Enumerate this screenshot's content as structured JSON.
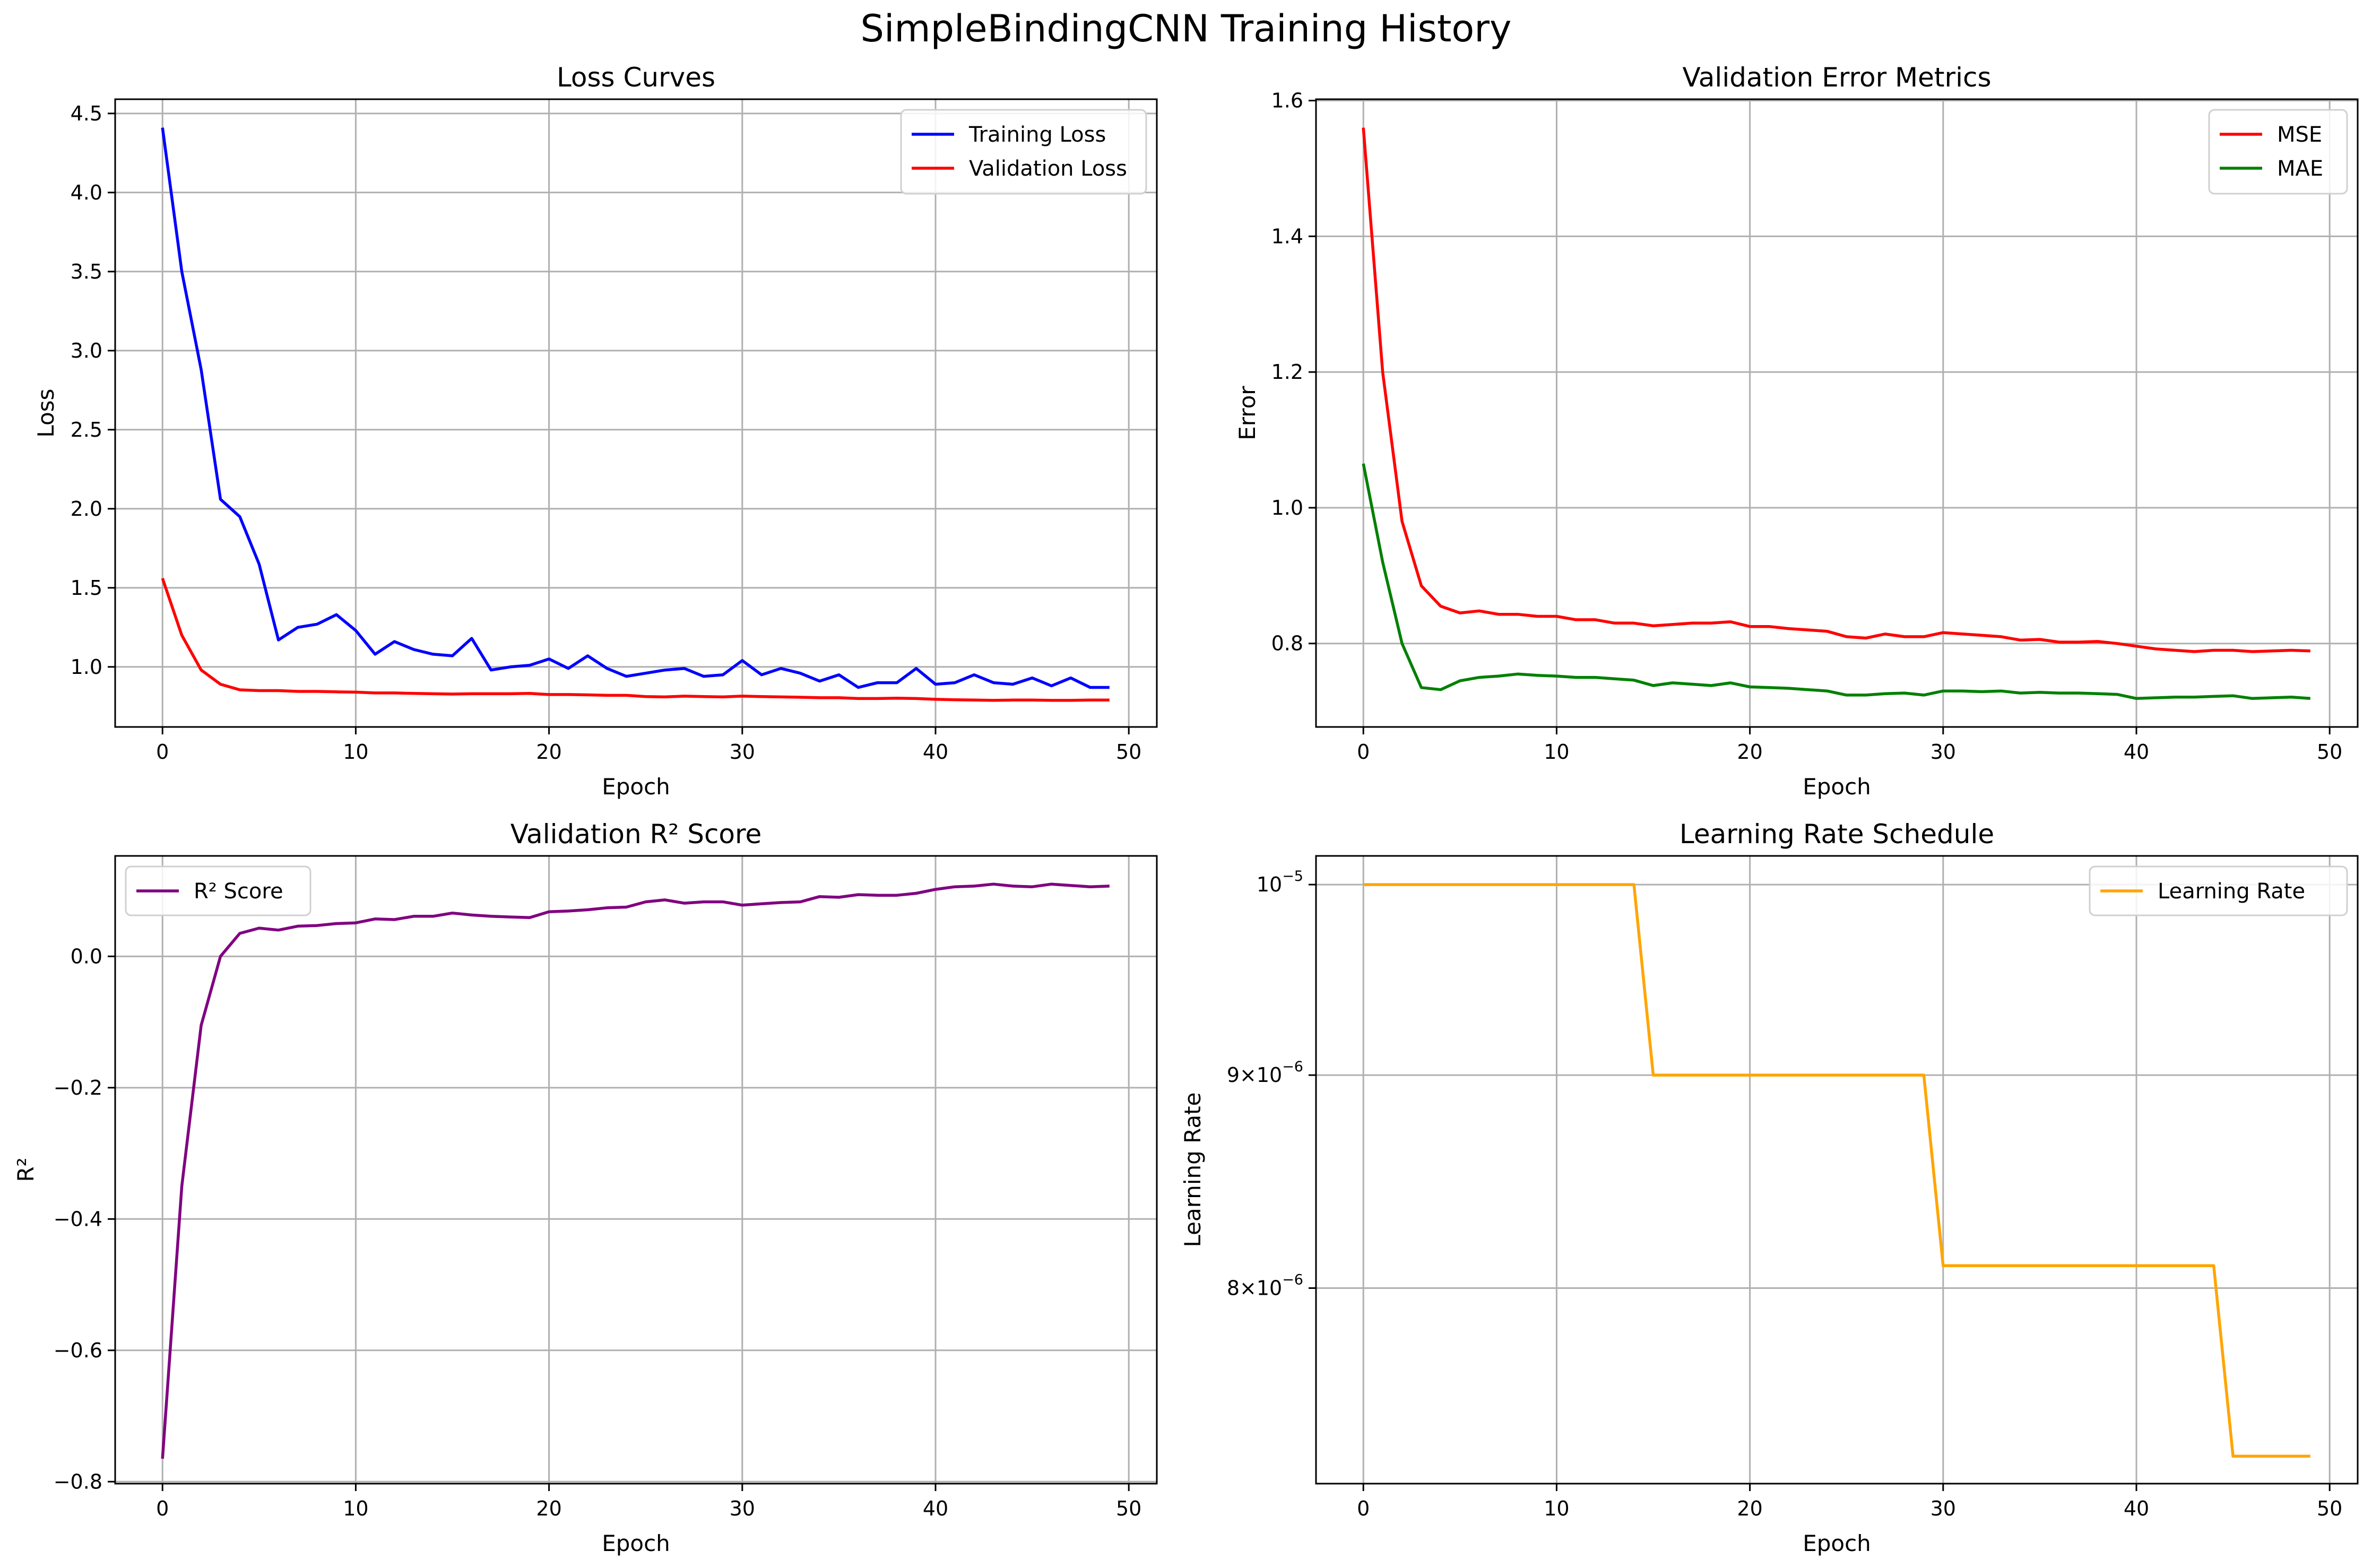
{
  "figure_title": "SimpleBindingCNN Training History",
  "colors": {
    "training_loss": "#0000ff",
    "validation_loss": "#ff0000",
    "mse": "#ff0000",
    "mae": "#008000",
    "r2": "#800080",
    "learning_rate": "#ffa500"
  },
  "chart_data": [
    {
      "type": "line",
      "title": "Loss Curves",
      "xlabel": "Epoch",
      "ylabel": "Loss",
      "xlim": [
        -2.45,
        51.45
      ],
      "ylim": [
        0.62,
        4.59
      ],
      "x_ticks": [
        0,
        10,
        20,
        30,
        40,
        50
      ],
      "y_ticks": [
        1.0,
        1.5,
        2.0,
        2.5,
        3.0,
        3.5,
        4.0,
        4.5
      ],
      "y_tick_labels": [
        "1.0",
        "1.5",
        "2.0",
        "2.5",
        "3.0",
        "3.5",
        "4.0",
        "4.5"
      ],
      "grid": true,
      "legend": "top-right",
      "x": [
        0,
        1,
        2,
        3,
        4,
        5,
        6,
        7,
        8,
        9,
        10,
        11,
        12,
        13,
        14,
        15,
        16,
        17,
        18,
        19,
        20,
        21,
        22,
        23,
        24,
        25,
        26,
        27,
        28,
        29,
        30,
        31,
        32,
        33,
        34,
        35,
        36,
        37,
        38,
        39,
        40,
        41,
        42,
        43,
        44,
        45,
        46,
        47,
        48,
        49
      ],
      "series": [
        {
          "name": "Training Loss",
          "color_key": "training_loss",
          "values": [
            4.41,
            3.5,
            2.88,
            2.06,
            1.95,
            1.65,
            1.17,
            1.25,
            1.27,
            1.33,
            1.23,
            1.08,
            1.16,
            1.11,
            1.08,
            1.07,
            1.18,
            0.98,
            1.0,
            1.01,
            1.05,
            0.99,
            1.07,
            0.99,
            0.94,
            0.96,
            0.98,
            0.99,
            0.94,
            0.95,
            1.04,
            0.95,
            0.99,
            0.96,
            0.91,
            0.95,
            0.87,
            0.9,
            0.9,
            0.99,
            0.89,
            0.9,
            0.95,
            0.9,
            0.89,
            0.93,
            0.88,
            0.93,
            0.87,
            0.87
          ]
        },
        {
          "name": "Validation Loss",
          "color_key": "validation_loss",
          "values": [
            1.56,
            1.2,
            0.98,
            0.89,
            0.855,
            0.85,
            0.85,
            0.845,
            0.845,
            0.842,
            0.84,
            0.835,
            0.835,
            0.832,
            0.83,
            0.828,
            0.83,
            0.83,
            0.83,
            0.832,
            0.825,
            0.825,
            0.823,
            0.82,
            0.82,
            0.812,
            0.81,
            0.815,
            0.812,
            0.81,
            0.815,
            0.812,
            0.81,
            0.808,
            0.805,
            0.805,
            0.8,
            0.8,
            0.802,
            0.8,
            0.795,
            0.792,
            0.79,
            0.788,
            0.79,
            0.79,
            0.788,
            0.788,
            0.79,
            0.79
          ]
        }
      ]
    },
    {
      "type": "line",
      "title": "Validation Error Metrics",
      "xlabel": "Epoch",
      "ylabel": "Error",
      "xlim": [
        -2.45,
        51.45
      ],
      "ylim": [
        0.677,
        1.602
      ],
      "x_ticks": [
        0,
        10,
        20,
        30,
        40,
        50
      ],
      "y_ticks": [
        0.8,
        1.0,
        1.2,
        1.4,
        1.6
      ],
      "y_tick_labels": [
        "0.8",
        "1.0",
        "1.2",
        "1.4",
        "1.6"
      ],
      "grid": true,
      "legend": "top-right",
      "x": [
        0,
        1,
        2,
        3,
        4,
        5,
        6,
        7,
        8,
        9,
        10,
        11,
        12,
        13,
        14,
        15,
        16,
        17,
        18,
        19,
        20,
        21,
        22,
        23,
        24,
        25,
        26,
        27,
        28,
        29,
        30,
        31,
        32,
        33,
        34,
        35,
        36,
        37,
        38,
        39,
        40,
        41,
        42,
        43,
        44,
        45,
        46,
        47,
        48,
        49
      ],
      "series": [
        {
          "name": "MSE",
          "color_key": "mse",
          "values": [
            1.56,
            1.2,
            0.98,
            0.885,
            0.855,
            0.845,
            0.848,
            0.843,
            0.843,
            0.84,
            0.84,
            0.835,
            0.835,
            0.83,
            0.83,
            0.826,
            0.828,
            0.83,
            0.83,
            0.832,
            0.825,
            0.825,
            0.822,
            0.82,
            0.818,
            0.81,
            0.808,
            0.814,
            0.81,
            0.81,
            0.816,
            0.814,
            0.812,
            0.81,
            0.805,
            0.806,
            0.802,
            0.802,
            0.803,
            0.8,
            0.796,
            0.792,
            0.79,
            0.788,
            0.79,
            0.79,
            0.788,
            0.789,
            0.79,
            0.789
          ]
        },
        {
          "name": "MAE",
          "color_key": "mae",
          "values": [
            1.065,
            0.92,
            0.8,
            0.735,
            0.732,
            0.745,
            0.75,
            0.752,
            0.755,
            0.753,
            0.752,
            0.75,
            0.75,
            0.748,
            0.746,
            0.738,
            0.742,
            0.74,
            0.738,
            0.742,
            0.736,
            0.735,
            0.734,
            0.732,
            0.73,
            0.724,
            0.724,
            0.726,
            0.727,
            0.724,
            0.73,
            0.73,
            0.729,
            0.73,
            0.727,
            0.728,
            0.727,
            0.727,
            0.726,
            0.725,
            0.719,
            0.72,
            0.721,
            0.721,
            0.722,
            0.723,
            0.719,
            0.72,
            0.721,
            0.719
          ]
        }
      ]
    },
    {
      "type": "line",
      "title": "Validation R² Score",
      "xlabel": "Epoch",
      "ylabel": "R²",
      "xlim": [
        -2.45,
        51.45
      ],
      "ylim": [
        -0.803,
        0.153
      ],
      "x_ticks": [
        0,
        10,
        20,
        30,
        40,
        50
      ],
      "y_ticks": [
        -0.8,
        -0.6,
        -0.4,
        -0.2,
        0.0
      ],
      "y_tick_labels": [
        "−0.8",
        "−0.6",
        "−0.4",
        "−0.2",
        "0.0"
      ],
      "grid": true,
      "legend": "top-left",
      "x": [
        0,
        1,
        2,
        3,
        4,
        5,
        6,
        7,
        8,
        9,
        10,
        11,
        12,
        13,
        14,
        15,
        16,
        17,
        18,
        19,
        20,
        21,
        22,
        23,
        24,
        25,
        26,
        27,
        28,
        29,
        30,
        31,
        32,
        33,
        34,
        35,
        36,
        37,
        38,
        39,
        40,
        41,
        42,
        43,
        44,
        45,
        46,
        47,
        48,
        49
      ],
      "series": [
        {
          "name": "R² Score",
          "color_key": "r2",
          "values": [
            -0.765,
            -0.35,
            -0.105,
            0.0,
            0.035,
            0.043,
            0.04,
            0.046,
            0.047,
            0.05,
            0.051,
            0.057,
            0.056,
            0.061,
            0.061,
            0.066,
            0.063,
            0.061,
            0.06,
            0.059,
            0.068,
            0.069,
            0.071,
            0.074,
            0.075,
            0.083,
            0.086,
            0.081,
            0.083,
            0.083,
            0.078,
            0.08,
            0.082,
            0.083,
            0.091,
            0.09,
            0.094,
            0.093,
            0.093,
            0.096,
            0.102,
            0.106,
            0.107,
            0.11,
            0.107,
            0.106,
            0.11,
            0.108,
            0.106,
            0.107
          ]
        }
      ]
    },
    {
      "type": "line",
      "title": "Learning Rate Schedule",
      "xlabel": "Epoch",
      "ylabel": "Learning Rate",
      "y_scale": "log",
      "xlim": [
        -2.45,
        51.45
      ],
      "ylim": [
        7.18e-06,
        1.016e-05
      ],
      "x_ticks": [
        0,
        10,
        20,
        30,
        40,
        50
      ],
      "y_ticks": [
        8e-06,
        9e-06,
        1e-05
      ],
      "y_tick_labels": [
        {
          "mantissa": "8×10",
          "exponent": "−6"
        },
        {
          "mantissa": "9×10",
          "exponent": "−6"
        },
        {
          "mantissa": "10",
          "exponent": "−5"
        }
      ],
      "grid": true,
      "legend": "top-right",
      "x": [
        0,
        1,
        2,
        3,
        4,
        5,
        6,
        7,
        8,
        9,
        10,
        11,
        12,
        13,
        14,
        15,
        16,
        17,
        18,
        19,
        20,
        21,
        22,
        23,
        24,
        25,
        26,
        27,
        28,
        29,
        30,
        31,
        32,
        33,
        34,
        35,
        36,
        37,
        38,
        39,
        40,
        41,
        42,
        43,
        44,
        45,
        46,
        47,
        48,
        49
      ],
      "series": [
        {
          "name": "Learning Rate",
          "color_key": "learning_rate",
          "values": [
            1e-05,
            1e-05,
            1e-05,
            1e-05,
            1e-05,
            1e-05,
            1e-05,
            1e-05,
            1e-05,
            1e-05,
            1e-05,
            1e-05,
            1e-05,
            1e-05,
            1e-05,
            9e-06,
            9e-06,
            9e-06,
            9e-06,
            9e-06,
            9e-06,
            9e-06,
            9e-06,
            9e-06,
            9e-06,
            9e-06,
            9e-06,
            9e-06,
            9e-06,
            9e-06,
            8.1e-06,
            8.1e-06,
            8.1e-06,
            8.1e-06,
            8.1e-06,
            8.1e-06,
            8.1e-06,
            8.1e-06,
            8.1e-06,
            8.1e-06,
            8.1e-06,
            8.1e-06,
            8.1e-06,
            8.1e-06,
            8.1e-06,
            7.29e-06,
            7.29e-06,
            7.29e-06,
            7.29e-06,
            7.29e-06
          ]
        }
      ]
    }
  ]
}
